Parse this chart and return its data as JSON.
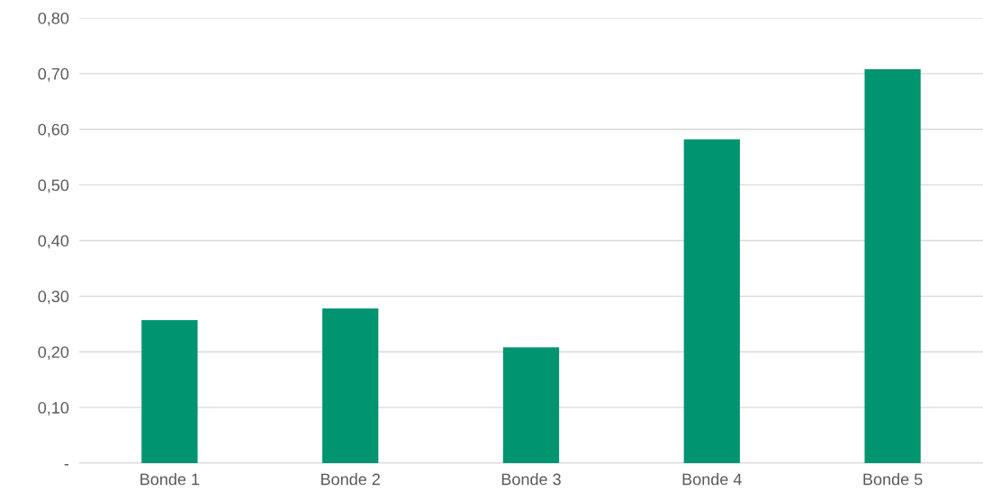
{
  "chart_data": {
    "type": "bar",
    "categories": [
      "Bonde 1",
      "Bonde 2",
      "Bonde 3",
      "Bonde 4",
      "Bonde 5"
    ],
    "values": [
      0.257,
      0.278,
      0.208,
      0.582,
      0.708
    ],
    "color": "#009470",
    "ylim": [
      0,
      0.8
    ],
    "yticks": [
      {
        "value": 0,
        "label": "-"
      },
      {
        "value": 0.1,
        "label": "0,10"
      },
      {
        "value": 0.2,
        "label": "0,20"
      },
      {
        "value": 0.3,
        "label": "0,30"
      },
      {
        "value": 0.4,
        "label": "0,40"
      },
      {
        "value": 0.5,
        "label": "0,50"
      },
      {
        "value": 0.6,
        "label": "0,60"
      },
      {
        "value": 0.7,
        "label": "0,70"
      },
      {
        "value": 0.8,
        "label": "0,80"
      }
    ],
    "grid": "y"
  }
}
